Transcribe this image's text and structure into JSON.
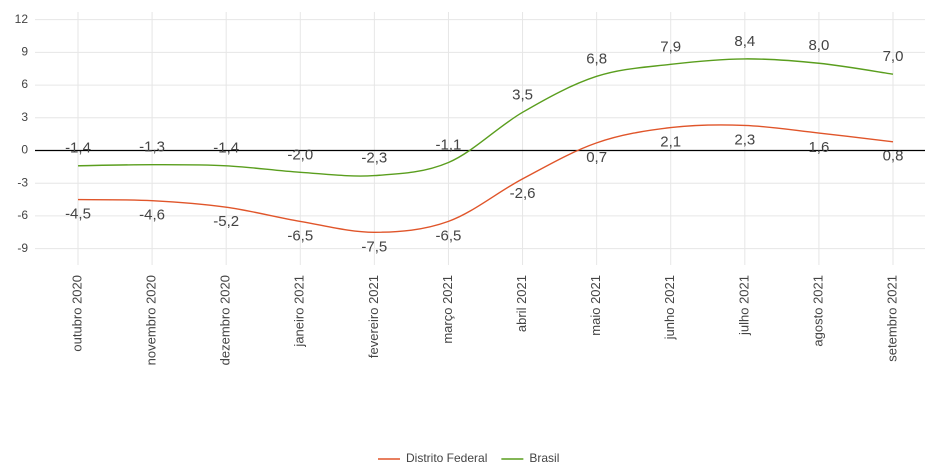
{
  "chart_data": {
    "type": "line",
    "categories": [
      "outubro 2020",
      "novembro 2020",
      "dezembro 2020",
      "janeiro 2021",
      "fevereiro 2021",
      "março 2021",
      "abril 2021",
      "maio 2021",
      "junho 2021",
      "julho 2021",
      "agosto 2021",
      "setembro 2021"
    ],
    "series": [
      {
        "name": "Distrito Federal",
        "color": "#e0552a",
        "values": [
          -4.5,
          -4.6,
          -5.2,
          -6.5,
          -7.5,
          -6.5,
          -2.6,
          0.7,
          2.1,
          2.3,
          1.6,
          0.8
        ],
        "value_labels": [
          "-4,5",
          "-4,6",
          "-5,2",
          "-6,5",
          "-7,5",
          "-6,5",
          "-2,6",
          "0,7",
          "2,1",
          "2,3",
          "1,6",
          "0,8"
        ]
      },
      {
        "name": "Brasil",
        "color": "#5a9e1e",
        "values": [
          -1.4,
          -1.3,
          -1.4,
          -2.0,
          -2.3,
          -1.1,
          3.5,
          6.8,
          7.9,
          8.4,
          8.0,
          7.0
        ],
        "value_labels": [
          "-1,4",
          "-1,3",
          "-1,4",
          "-2,0",
          "-2,3",
          "-1,1",
          "3,5",
          "6,8",
          "7,9",
          "8,4",
          "8,0",
          "7,0"
        ]
      }
    ],
    "ylim": [
      -10.5,
      12.7
    ],
    "yticks": [
      -9,
      -6,
      -3,
      0,
      3,
      6,
      9,
      12
    ],
    "grid": true,
    "legend": "bottom"
  }
}
